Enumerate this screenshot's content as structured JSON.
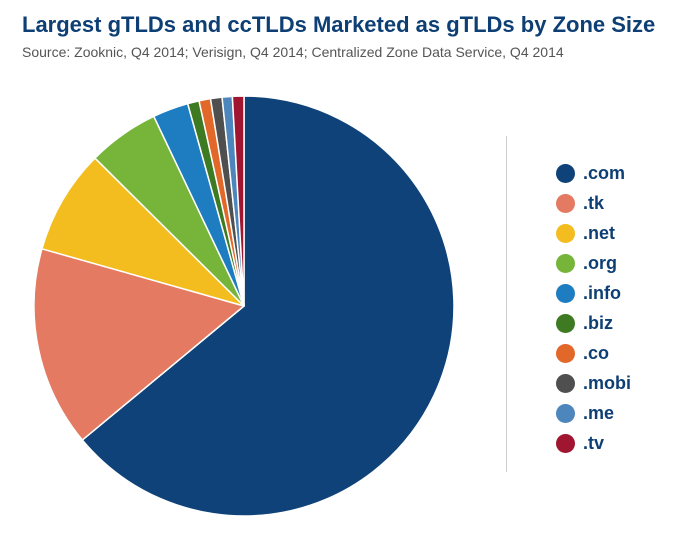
{
  "chart_data": {
    "type": "pie",
    "title": "Largest gTLDs and ccTLDs Marketed as gTLDs by Zone Size",
    "subtitle": "Source: Zooknic, Q4 2014; Verisign, Q4 2014; Centralized Zone Data Service, Q4 2014",
    "legend_position": "right",
    "slices": [
      {
        "label": ".com",
        "value": 65.2,
        "color": "#0e4278"
      },
      {
        "label": ".tk",
        "value": 15.7,
        "color": "#e47a62"
      },
      {
        "label": ".net",
        "value": 8.2,
        "color": "#f3bd1f"
      },
      {
        "label": ".org",
        "value": 5.6,
        "color": "#76b53a"
      },
      {
        "label": ".info",
        "value": 2.8,
        "color": "#1e7dc0"
      },
      {
        "label": ".biz",
        "value": 0.9,
        "color": "#3e7a22"
      },
      {
        "label": ".co",
        "value": 0.9,
        "color": "#e2682a"
      },
      {
        "label": ".mobi",
        "value": 0.9,
        "color": "#4f4f4f"
      },
      {
        "label": ".me",
        "value": 0.8,
        "color": "#4d86bd"
      },
      {
        "label": ".tv",
        "value": 0.9,
        "color": "#a0152f"
      }
    ]
  }
}
